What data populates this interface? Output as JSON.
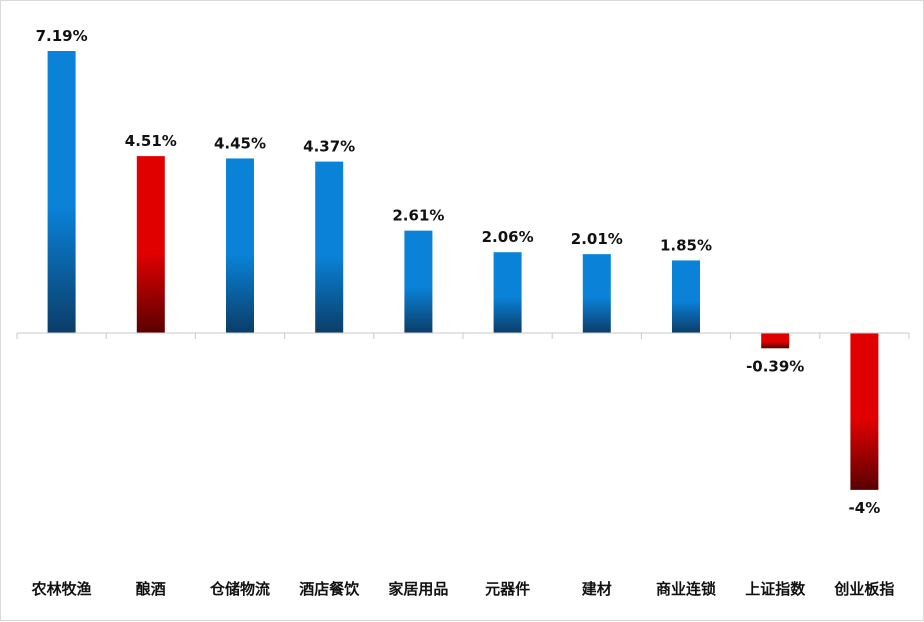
{
  "chart_data": {
    "type": "bar",
    "categories": [
      "农林牧渔",
      "酿酒",
      "仓储物流",
      "酒店餐饮",
      "家居用品",
      "元器件",
      "建材",
      "商业连锁",
      "上证指数",
      "创业板指"
    ],
    "values": [
      7.19,
      4.51,
      4.45,
      4.37,
      2.61,
      2.06,
      2.01,
      1.85,
      -0.39,
      -4
    ],
    "value_labels": [
      "7.19%",
      "4.51%",
      "4.45%",
      "4.37%",
      "2.61%",
      "2.06%",
      "2.01%",
      "1.85%",
      "-0.39%",
      "-4%"
    ],
    "bar_colors": [
      "blue",
      "red",
      "blue",
      "blue",
      "blue",
      "blue",
      "blue",
      "blue",
      "red",
      "red"
    ],
    "title": "",
    "xlabel": "",
    "ylabel": "",
    "ylim": [
      -4,
      7.19
    ],
    "grid": false,
    "legend": "none"
  },
  "colors": {
    "blue_top": "#0a82d8",
    "blue_bottom": "#0b3d68",
    "red_top": "#e00000",
    "red_bottom": "#5a0000",
    "axis": "#c8c8c8"
  }
}
